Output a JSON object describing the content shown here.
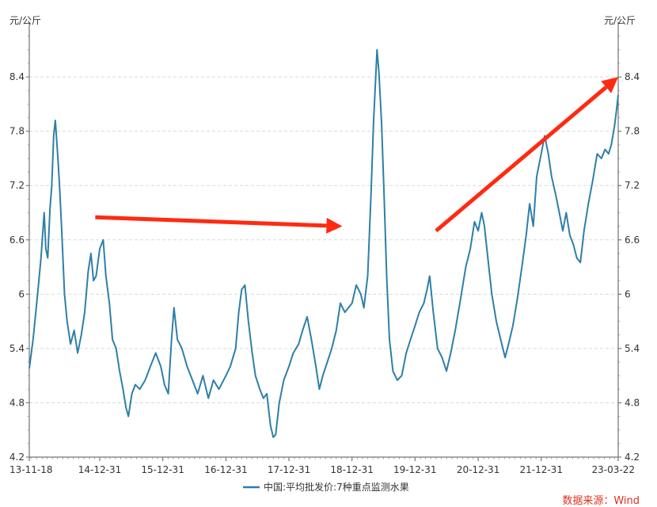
{
  "chart_data": {
    "type": "line",
    "series": [
      {
        "name": "中国:平均批发价:7种重点监测水果",
        "color": "#2e7fa8",
        "points": [
          [
            "2013-11-18",
            5.18
          ],
          [
            "2013-12-10",
            5.5
          ],
          [
            "2014-01-05",
            6.0
          ],
          [
            "2014-01-25",
            6.4
          ],
          [
            "2014-02-12",
            6.9
          ],
          [
            "2014-02-22",
            6.5
          ],
          [
            "2014-03-05",
            6.4
          ],
          [
            "2014-03-18",
            6.95
          ],
          [
            "2014-03-28",
            7.2
          ],
          [
            "2014-04-08",
            7.75
          ],
          [
            "2014-04-18",
            7.92
          ],
          [
            "2014-05-01",
            7.55
          ],
          [
            "2014-05-12",
            7.2
          ],
          [
            "2014-05-25",
            6.7
          ],
          [
            "2014-06-10",
            6.0
          ],
          [
            "2014-06-25",
            5.7
          ],
          [
            "2014-07-15",
            5.45
          ],
          [
            "2014-08-05",
            5.6
          ],
          [
            "2014-08-25",
            5.35
          ],
          [
            "2014-09-15",
            5.55
          ],
          [
            "2014-10-05",
            5.8
          ],
          [
            "2014-10-25",
            6.25
          ],
          [
            "2014-11-10",
            6.45
          ],
          [
            "2014-11-25",
            6.15
          ],
          [
            "2014-12-10",
            6.2
          ],
          [
            "2014-12-31",
            6.5
          ],
          [
            "2015-01-20",
            6.6
          ],
          [
            "2015-02-05",
            6.2
          ],
          [
            "2015-02-25",
            5.9
          ],
          [
            "2015-03-15",
            5.5
          ],
          [
            "2015-04-05",
            5.4
          ],
          [
            "2015-04-25",
            5.15
          ],
          [
            "2015-05-15",
            4.95
          ],
          [
            "2015-06-01",
            4.75
          ],
          [
            "2015-06-15",
            4.65
          ],
          [
            "2015-07-05",
            4.9
          ],
          [
            "2015-07-25",
            5.0
          ],
          [
            "2015-08-20",
            4.95
          ],
          [
            "2015-09-20",
            5.05
          ],
          [
            "2015-10-20",
            5.2
          ],
          [
            "2015-11-20",
            5.35
          ],
          [
            "2015-12-20",
            5.2
          ],
          [
            "2016-01-10",
            5.0
          ],
          [
            "2016-02-01",
            4.9
          ],
          [
            "2016-02-20",
            5.5
          ],
          [
            "2016-03-05",
            5.85
          ],
          [
            "2016-03-25",
            5.5
          ],
          [
            "2016-04-20",
            5.4
          ],
          [
            "2016-05-20",
            5.2
          ],
          [
            "2016-06-20",
            5.05
          ],
          [
            "2016-07-20",
            4.9
          ],
          [
            "2016-08-20",
            5.1
          ],
          [
            "2016-09-20",
            4.85
          ],
          [
            "2016-10-20",
            5.05
          ],
          [
            "2016-11-20",
            4.95
          ],
          [
            "2016-12-31",
            5.1
          ],
          [
            "2017-01-25",
            5.2
          ],
          [
            "2017-02-25",
            5.4
          ],
          [
            "2017-03-15",
            5.8
          ],
          [
            "2017-04-01",
            6.05
          ],
          [
            "2017-04-20",
            6.1
          ],
          [
            "2017-05-10",
            5.7
          ],
          [
            "2017-06-01",
            5.35
          ],
          [
            "2017-06-20",
            5.1
          ],
          [
            "2017-07-15",
            4.95
          ],
          [
            "2017-08-05",
            4.85
          ],
          [
            "2017-08-25",
            4.9
          ],
          [
            "2017-09-15",
            4.55
          ],
          [
            "2017-10-01",
            4.42
          ],
          [
            "2017-10-15",
            4.45
          ],
          [
            "2017-11-05",
            4.8
          ],
          [
            "2017-12-01",
            5.05
          ],
          [
            "2017-12-31",
            5.2
          ],
          [
            "2018-01-25",
            5.35
          ],
          [
            "2018-02-25",
            5.45
          ],
          [
            "2018-03-20",
            5.6
          ],
          [
            "2018-04-15",
            5.75
          ],
          [
            "2018-05-10",
            5.5
          ],
          [
            "2018-06-05",
            5.2
          ],
          [
            "2018-06-25",
            4.95
          ],
          [
            "2018-07-15",
            5.1
          ],
          [
            "2018-08-10",
            5.25
          ],
          [
            "2018-09-05",
            5.4
          ],
          [
            "2018-10-01",
            5.6
          ],
          [
            "2018-10-25",
            5.9
          ],
          [
            "2018-11-20",
            5.8
          ],
          [
            "2018-12-31",
            5.9
          ],
          [
            "2019-01-25",
            6.1
          ],
          [
            "2019-02-20",
            6.0
          ],
          [
            "2019-03-10",
            5.85
          ],
          [
            "2019-04-01",
            6.2
          ],
          [
            "2019-04-20",
            7.1
          ],
          [
            "2019-05-05",
            7.9
          ],
          [
            "2019-05-15",
            8.3
          ],
          [
            "2019-05-25",
            8.7
          ],
          [
            "2019-06-05",
            8.45
          ],
          [
            "2019-06-20",
            7.9
          ],
          [
            "2019-07-05",
            7.1
          ],
          [
            "2019-07-20",
            6.2
          ],
          [
            "2019-08-05",
            5.5
          ],
          [
            "2019-08-25",
            5.15
          ],
          [
            "2019-09-20",
            5.05
          ],
          [
            "2019-10-15",
            5.1
          ],
          [
            "2019-11-10",
            5.35
          ],
          [
            "2019-12-05",
            5.5
          ],
          [
            "2019-12-31",
            5.65
          ],
          [
            "2020-01-25",
            5.8
          ],
          [
            "2020-02-20",
            5.9
          ],
          [
            "2020-03-10",
            6.05
          ],
          [
            "2020-03-25",
            6.2
          ],
          [
            "2020-04-15",
            5.8
          ],
          [
            "2020-05-10",
            5.4
          ],
          [
            "2020-06-05",
            5.3
          ],
          [
            "2020-06-30",
            5.15
          ],
          [
            "2020-07-25",
            5.35
          ],
          [
            "2020-08-20",
            5.6
          ],
          [
            "2020-09-20",
            5.95
          ],
          [
            "2020-10-20",
            6.3
          ],
          [
            "2020-11-15",
            6.5
          ],
          [
            "2020-12-10",
            6.8
          ],
          [
            "2020-12-31",
            6.7
          ],
          [
            "2021-01-20",
            6.9
          ],
          [
            "2021-02-05",
            6.75
          ],
          [
            "2021-02-25",
            6.4
          ],
          [
            "2021-03-20",
            6.0
          ],
          [
            "2021-04-15",
            5.7
          ],
          [
            "2021-05-10",
            5.5
          ],
          [
            "2021-06-05",
            5.3
          ],
          [
            "2021-06-25",
            5.45
          ],
          [
            "2021-07-20",
            5.65
          ],
          [
            "2021-08-15",
            5.95
          ],
          [
            "2021-09-10",
            6.3
          ],
          [
            "2021-10-05",
            6.65
          ],
          [
            "2021-10-25",
            7.0
          ],
          [
            "2021-11-15",
            6.75
          ],
          [
            "2021-12-05",
            7.3
          ],
          [
            "2021-12-31",
            7.55
          ],
          [
            "2022-01-20",
            7.75
          ],
          [
            "2022-02-10",
            7.55
          ],
          [
            "2022-03-01",
            7.3
          ],
          [
            "2022-03-25",
            7.1
          ],
          [
            "2022-04-15",
            6.9
          ],
          [
            "2022-05-05",
            6.7
          ],
          [
            "2022-05-25",
            6.9
          ],
          [
            "2022-06-15",
            6.65
          ],
          [
            "2022-07-05",
            6.55
          ],
          [
            "2022-07-25",
            6.4
          ],
          [
            "2022-08-15",
            6.35
          ],
          [
            "2022-09-05",
            6.7
          ],
          [
            "2022-09-30",
            7.0
          ],
          [
            "2022-10-25",
            7.25
          ],
          [
            "2022-11-20",
            7.55
          ],
          [
            "2022-12-15",
            7.5
          ],
          [
            "2023-01-05",
            7.6
          ],
          [
            "2023-01-25",
            7.55
          ],
          [
            "2023-02-10",
            7.65
          ],
          [
            "2023-02-28",
            7.85
          ],
          [
            "2023-03-10",
            8.0
          ],
          [
            "2023-03-22",
            8.2
          ]
        ]
      }
    ],
    "x_ticks": [
      "13-11-18",
      "14-12-31",
      "15-12-31",
      "16-12-31",
      "17-12-31",
      "18-12-31",
      "19-12-31",
      "20-12-31",
      "21-12-31",
      "23-03-22"
    ],
    "x_tick_dates": [
      "2013-11-18",
      "2014-12-31",
      "2015-12-31",
      "2016-12-31",
      "2017-12-31",
      "2018-12-31",
      "2019-12-31",
      "2020-12-31",
      "2021-12-31",
      "2023-03-22"
    ],
    "x_range": [
      "2013-11-18",
      "2023-03-22"
    ],
    "y_ticks": [
      4.2,
      4.8,
      5.4,
      6,
      6.6,
      7.2,
      7.8,
      8.4
    ],
    "y_tick_labels": [
      "4.2",
      "4.8",
      "5.4",
      "6",
      "6.6",
      "7.2",
      "7.8",
      "8.4"
    ],
    "ylim": [
      4.2,
      8.9
    ],
    "ylabel_left": "元/公斤",
    "ylabel_right": "元/公斤",
    "grid": "horizontal dashed",
    "legend_position": "bottom",
    "annotations": [
      {
        "type": "arrow",
        "color": "#ff2a12",
        "from": [
          "2014-12-05",
          6.85
        ],
        "to": [
          "2018-11-05",
          6.75
        ]
      },
      {
        "type": "arrow",
        "color": "#ff2a12",
        "from": [
          "2020-05-01",
          6.7
        ],
        "to": [
          "2023-03-22",
          8.4
        ]
      }
    ],
    "source": "数据来源：Wind"
  }
}
